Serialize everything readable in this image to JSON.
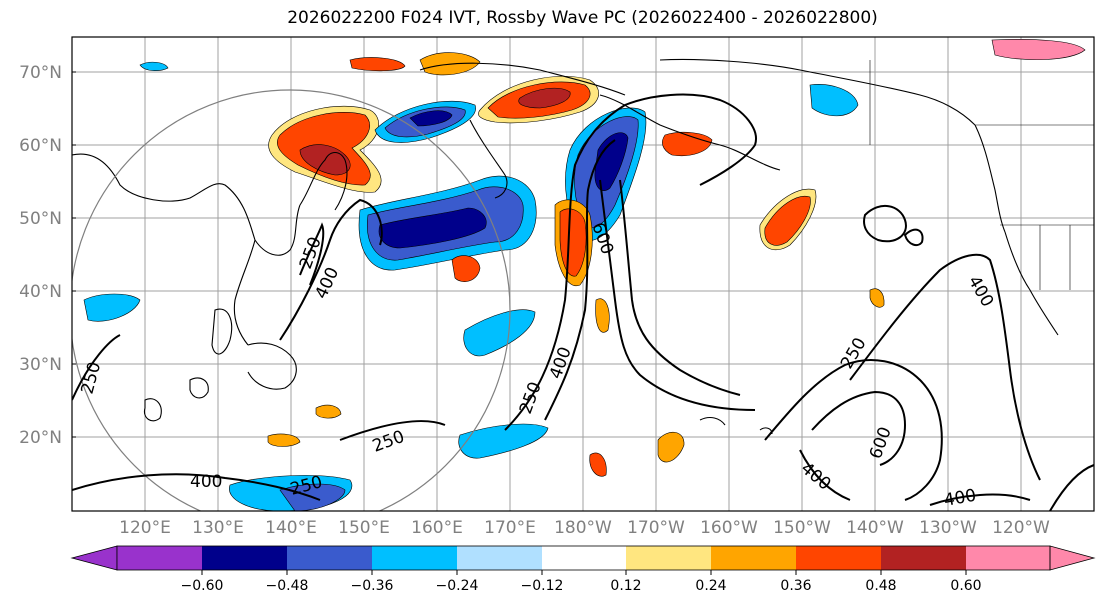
{
  "title": "2026022200 F024 IVT, Rossby Wave PC (2026022400 - 2026022800)",
  "lat_labels": [
    "70°N",
    "60°N",
    "50°N",
    "40°N",
    "30°N",
    "20°N"
  ],
  "lon_labels": [
    "120°E",
    "130°E",
    "140°E",
    "150°E",
    "160°E",
    "170°E",
    "180°W",
    "170°W",
    "160°W",
    "150°W",
    "140°W",
    "130°W",
    "120°W"
  ],
  "colorbar": {
    "tick_labels": [
      "−0.60",
      "−0.48",
      "−0.36",
      "−0.24",
      "−0.12",
      "0.12",
      "0.24",
      "0.36",
      "0.48",
      "0.60"
    ],
    "colors": [
      "#9932cc",
      "#00008b",
      "#3a5bcd",
      "#00bfff",
      "#b0e0ff",
      "#ffffff",
      "#ffe680",
      "#ffa500",
      "#ff4500",
      "#b22222",
      "#ff88aa"
    ]
  },
  "contour_labels": [
    "250",
    "400",
    "250",
    "400",
    "250",
    "600",
    "250",
    "400",
    "250",
    "400",
    "600",
    "250",
    "400",
    "400",
    "400"
  ],
  "colors": {
    "neg_dark": "#00008b",
    "neg_mid": "#3a5bcd",
    "neg_light": "#00bfff",
    "neg_pale": "#b0e0ff",
    "pos_pale": "#ffe680",
    "pos_light": "#ffa500",
    "pos_mid": "#ff4500",
    "pos_dark": "#b22222"
  }
}
